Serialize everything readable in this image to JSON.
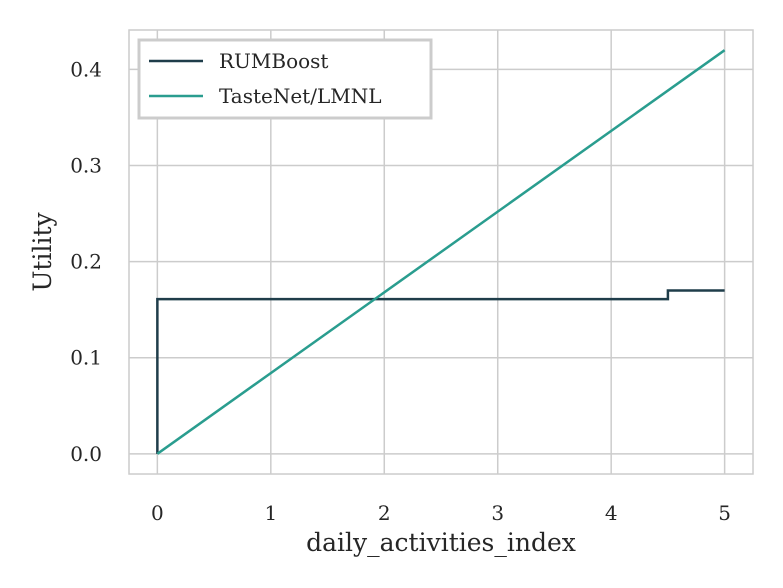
{
  "chart_data": {
    "type": "line",
    "title": "",
    "xlabel": "daily_activities_index",
    "ylabel": "Utility",
    "xlim": [
      -0.25,
      5.25
    ],
    "ylim": [
      -0.021,
      0.441
    ],
    "x_ticks": [
      0,
      1,
      2,
      3,
      4,
      5
    ],
    "x_tick_labels": [
      "0",
      "1",
      "2",
      "3",
      "4",
      "5"
    ],
    "y_ticks": [
      0.0,
      0.1,
      0.2,
      0.3,
      0.4
    ],
    "y_tick_labels": [
      "0.0",
      "0.1",
      "0.2",
      "0.3",
      "0.4"
    ],
    "grid": true,
    "legend": "top-left",
    "series": [
      {
        "name": "RUMBoost",
        "color": "#1f3d4a",
        "x": [
          0,
          0,
          4.5,
          4.5,
          5
        ],
        "y": [
          0.0,
          0.161,
          0.161,
          0.17,
          0.17
        ]
      },
      {
        "name": "TasteNet/LMNL",
        "color": "#2a9d8f",
        "x": [
          0,
          5
        ],
        "y": [
          0.0,
          0.42
        ]
      }
    ]
  },
  "colors": {
    "grid": "#cccccc",
    "frame": "#cccccc",
    "text": "#262626",
    "legend_border": "#cccccc"
  }
}
